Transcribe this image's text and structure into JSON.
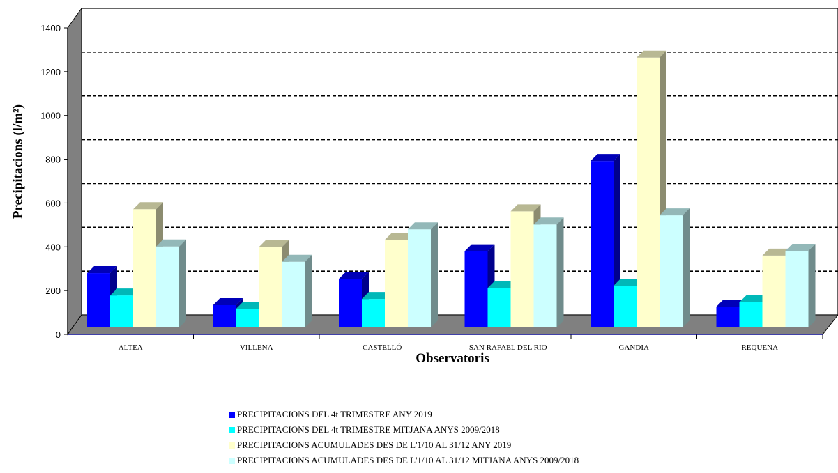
{
  "chart_data": {
    "type": "bar",
    "categories": [
      "ALTEA",
      "VILLENA",
      "CASTELLÓ",
      "SAN RAFAEL DEL RIO",
      "GANDIA",
      "REQUENA"
    ],
    "series": [
      {
        "name": "PRECIPITACIONS DEL 4t TRIMESTRE ANY 2019",
        "color": "#0000FF",
        "values": [
          248,
          102,
          222,
          348,
          760,
          95
        ]
      },
      {
        "name": "PRECIPITACIONS DEL 4t TRIMESTRE MITJANA ANYS 2009/2018",
        "color": "#00FFFF",
        "values": [
          146,
          85,
          130,
          180,
          190,
          115
        ]
      },
      {
        "name": "PRECIPITACIONS ACUMULADES DES DE L'1/10 AL 31/12 ANY 2019",
        "color": "#FFFFCC",
        "values": [
          540,
          368,
          400,
          530,
          1232,
          328
        ]
      },
      {
        "name": "PRECIPITACIONS ACUMULADES DES DE L'1/10 AL 31/12 MITJANA ANYS 2009/2018",
        "color": "#CCFFFF",
        "values": [
          370,
          300,
          448,
          470,
          512,
          350
        ]
      }
    ],
    "yticks": [
      0,
      200,
      400,
      600,
      800,
      1000,
      1200,
      1400
    ],
    "ylim": [
      0,
      1400
    ],
    "ylabel": "Precipitacions (l/m²)",
    "xlabel": "Observatoris",
    "grid": "dashed",
    "legend_position": "bottom"
  }
}
